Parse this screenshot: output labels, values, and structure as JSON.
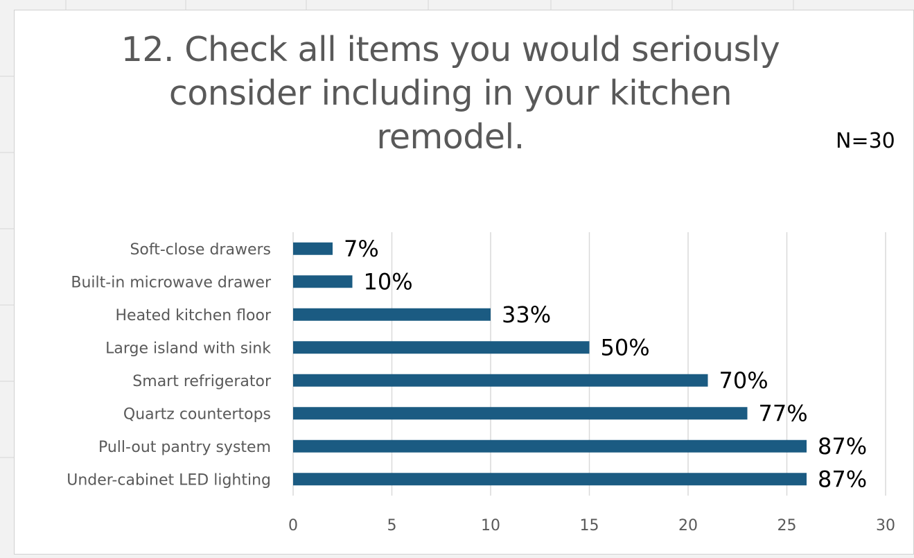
{
  "chart_data": {
    "type": "bar",
    "orientation": "horizontal",
    "title_lines": [
      "12. Check all items you would seriously",
      "consider including in your kitchen",
      "remodel."
    ],
    "annotation": "N=30",
    "categories": [
      "Soft-close drawers",
      "Built-in microwave drawer",
      "Heated kitchen floor",
      "Large island with sink",
      "Smart refrigerator",
      "Quartz countertops",
      "Pull-out pantry system",
      "Under-cabinet LED lighting"
    ],
    "values": [
      2,
      3,
      10,
      15,
      21,
      23,
      26,
      26
    ],
    "data_labels": [
      "7%",
      "10%",
      "33%",
      "50%",
      "70%",
      "77%",
      "87%",
      "87%"
    ],
    "xlim": [
      0,
      30
    ],
    "xticks": [
      "0",
      "5",
      "10",
      "15",
      "20",
      "25",
      "30"
    ],
    "grid": "vertical",
    "bar_color": "#1b5b82",
    "grid_color": "#d9d9d9"
  }
}
